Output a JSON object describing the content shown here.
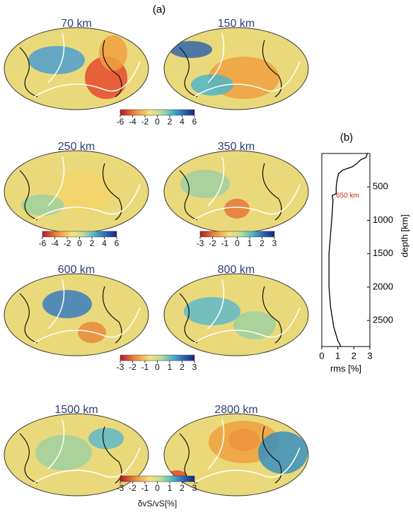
{
  "panel_label": "(a)",
  "maps": [
    {
      "title": "70 km"
    },
    {
      "title": "150 km"
    },
    {
      "title": "250 km"
    },
    {
      "title": "350 km"
    },
    {
      "title": "600 km"
    },
    {
      "title": "800 km"
    },
    {
      "title": "1500 km"
    },
    {
      "title": "2800 km"
    }
  ],
  "colorbars": [
    {
      "lim": [
        -6,
        6
      ],
      "ticks": [
        -6,
        -4,
        -2,
        0,
        2,
        4,
        6
      ]
    },
    {
      "lim": [
        -6,
        6
      ],
      "ticks": [
        -6,
        -4,
        -2,
        0,
        2,
        4,
        6
      ]
    },
    {
      "lim": [
        -3,
        3
      ],
      "ticks": [
        -3,
        -2,
        -1,
        0,
        1,
        2,
        3
      ]
    },
    {
      "lim": [
        -3,
        3
      ],
      "ticks": [
        -3,
        -2,
        -1,
        0,
        1,
        2,
        3
      ]
    },
    {
      "lim": [
        -3,
        3
      ],
      "ticks": [
        -3,
        -2,
        -1,
        0,
        1,
        2,
        3
      ],
      "label": "δvS/vS[%]"
    }
  ],
  "chart_data": {
    "type": "line",
    "title": "(b)",
    "swap_axes": true,
    "xlabel": "depth [km]",
    "ylabel": "rms [%]",
    "annotation": "650 km",
    "annotation_color": "#cc2222",
    "x": [
      0,
      30,
      60,
      100,
      150,
      200,
      250,
      300,
      400,
      500,
      600,
      630,
      700,
      900,
      1200,
      1500,
      2000,
      2300,
      2600,
      2800,
      2890
    ],
    "values": [
      2.85,
      2.8,
      2.75,
      2.4,
      2.2,
      1.9,
      1.3,
      1.05,
      0.95,
      0.9,
      0.9,
      0.65,
      0.7,
      0.65,
      0.55,
      0.45,
      0.45,
      0.55,
      0.75,
      1.0,
      1.2
    ],
    "color": "#000000",
    "xlim": [
      0,
      2890
    ],
    "xticks": [
      500,
      1000,
      1500,
      2000,
      2500
    ],
    "ylim": [
      0,
      3
    ],
    "yticks": [
      0,
      1,
      2,
      3
    ]
  }
}
